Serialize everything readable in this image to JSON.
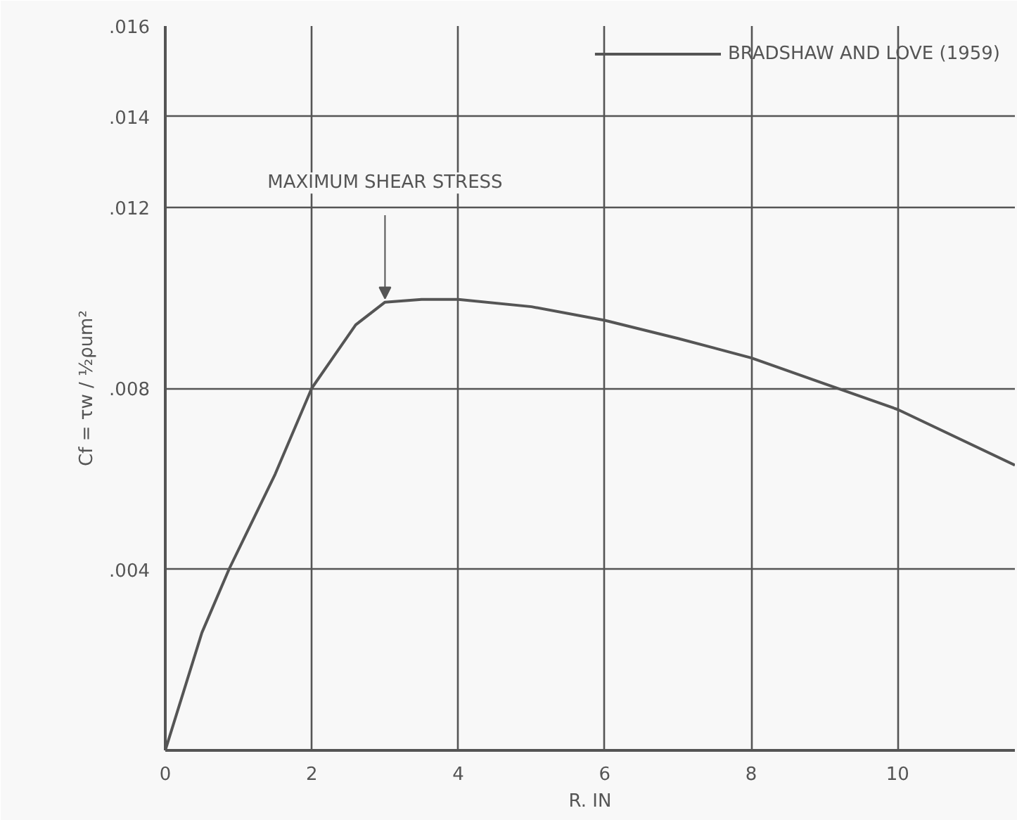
{
  "chart_data": {
    "type": "line",
    "xlabel": "R. IN",
    "ylabel": "Cf = τw / ½ρum²",
    "x": [
      0,
      0.5,
      0.87,
      1.5,
      2,
      2.3,
      2.6,
      3,
      3.5,
      4,
      5,
      6,
      7,
      8,
      9,
      10,
      11.6
    ],
    "series": [
      {
        "name": "BRADSHAW AND LOVE (1959)",
        "color": "#555555",
        "values": [
          0,
          0.0026,
          0.004,
          0.0061,
          0.008,
          0.0087,
          0.0094,
          0.0099,
          0.00996,
          0.00996,
          0.0098,
          0.0095,
          0.0091,
          0.00867,
          0.0081,
          0.00753,
          0.0063
        ]
      }
    ],
    "xlim": [
      0,
      11.6
    ],
    "ylim": [
      0,
      0.016
    ],
    "xticks": [
      0,
      2,
      4,
      6,
      8,
      10
    ],
    "yticks": [
      {
        "value": 0,
        "label": null
      },
      {
        "value": 0.004,
        "label": ".004"
      },
      {
        "value": 0.008,
        "label": ".008"
      },
      {
        "value": 0.012,
        "label": ".012"
      },
      {
        "value": 0.014,
        "label": ".014"
      },
      {
        "value": 0.016,
        "label": ".016"
      }
    ],
    "annotations": [
      {
        "text": "MAXIMUM SHEAR STRESS",
        "x": 3.0,
        "y": 0.0099
      }
    ],
    "grid": true,
    "legend": "top right",
    "marker": "none",
    "line_style": "solid"
  }
}
